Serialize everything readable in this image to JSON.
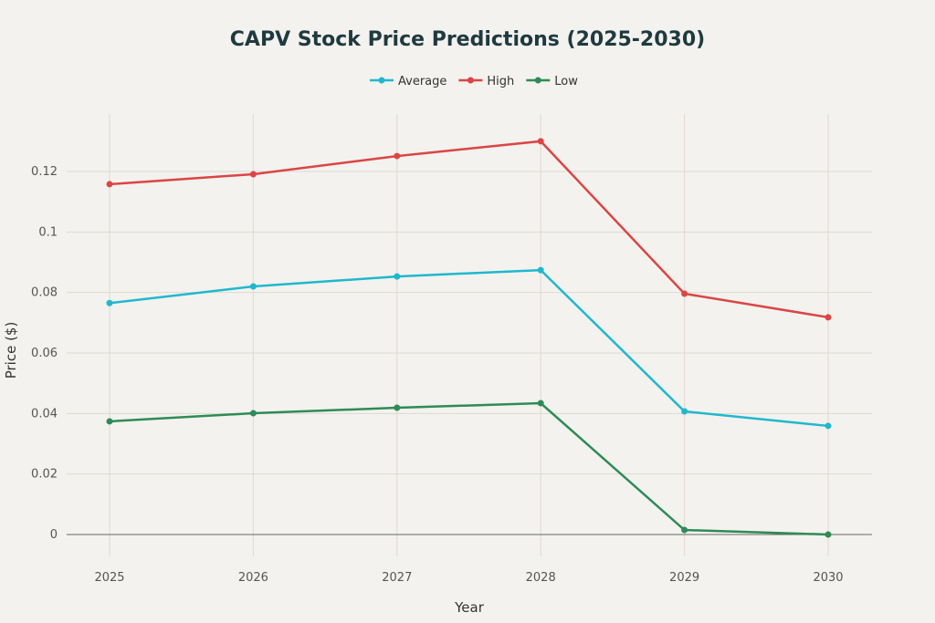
{
  "chart_data": {
    "type": "line",
    "title": "CAPV Stock Price Predictions (2025-2030)",
    "xlabel": "Year",
    "ylabel": "Price ($)",
    "x": [
      "2025",
      "2026",
      "2027",
      "2028",
      "2029",
      "2030"
    ],
    "yticks": [
      "0",
      "0.02",
      "0.04",
      "0.06",
      "0.08",
      "0.1",
      "0.12"
    ],
    "ylim": [
      -0.008,
      0.138
    ],
    "grid": true,
    "legend_position": "top-center",
    "series": [
      {
        "name": "Average",
        "color": "#1FB8CD",
        "values": [
          0.0765,
          0.082,
          0.0853,
          0.0874,
          0.0407,
          0.0359
        ]
      },
      {
        "name": "High",
        "color": "#DB4545",
        "values": [
          0.1158,
          0.1191,
          0.1251,
          0.13,
          0.0796,
          0.0718
        ]
      },
      {
        "name": "Low",
        "color": "#2E8B57",
        "values": [
          0.0374,
          0.0401,
          0.0419,
          0.0434,
          0.0015,
          0.0
        ]
      }
    ]
  }
}
